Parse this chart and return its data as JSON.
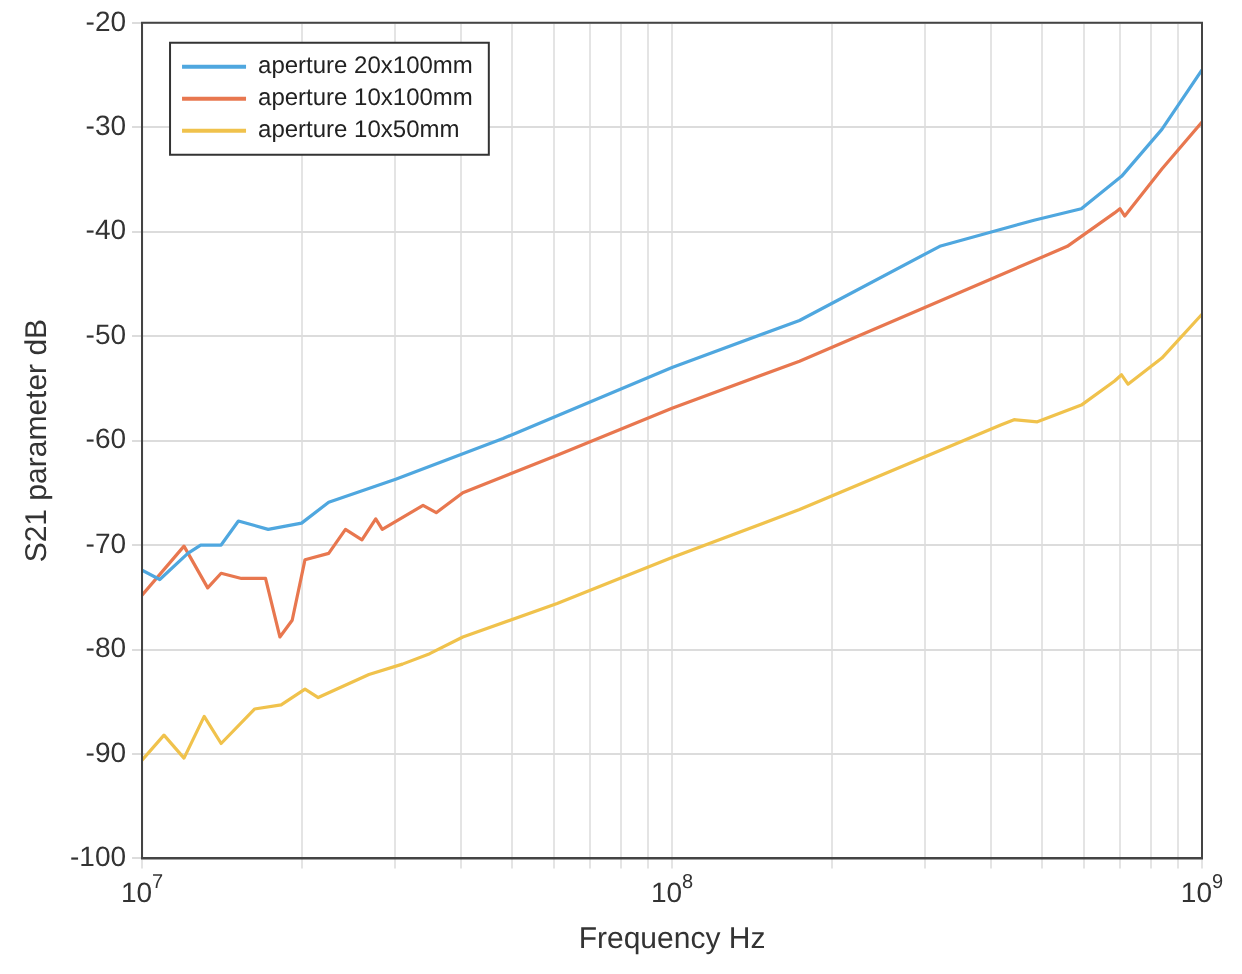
{
  "chart_data": {
    "type": "line",
    "xlabel": "Frequency Hz",
    "ylabel": "S21 parameter dB",
    "log": "x",
    "grid": true,
    "legend": "top left",
    "marker": "none",
    "line_style": "solid",
    "xlim": [
      10000000,
      1000000000
    ],
    "xticks": [
      {
        "value": 10000000,
        "label": "10$^{7}$"
      },
      {
        "value": 20000000,
        "label": null
      },
      {
        "value": 30000000,
        "label": null
      },
      {
        "value": 40000000,
        "label": null
      },
      {
        "value": 50000000,
        "label": null
      },
      {
        "value": 60000000,
        "label": null
      },
      {
        "value": 70000000,
        "label": null
      },
      {
        "value": 80000000,
        "label": null
      },
      {
        "value": 90000000,
        "label": null
      },
      {
        "value": 100000000,
        "label": "10$^{8}$"
      },
      {
        "value": 200000000,
        "label": null
      },
      {
        "value": 300000000,
        "label": null
      },
      {
        "value": 400000000,
        "label": null
      },
      {
        "value": 500000000,
        "label": null
      },
      {
        "value": 600000000,
        "label": null
      },
      {
        "value": 700000000,
        "label": null
      },
      {
        "value": 800000000,
        "label": null
      },
      {
        "value": 900000000,
        "label": null
      },
      {
        "value": 1000000000,
        "label": "10$^{9}$"
      }
    ],
    "ylim": [
      -100,
      -20
    ],
    "yticks": [
      -100,
      -90,
      -80,
      -70,
      -60,
      -50,
      -40,
      -30,
      -20
    ],
    "series": [
      {
        "name": "aperture 20x100mm",
        "color": "#4fa7df",
        "x": [
          10000000,
          10800000,
          12200000,
          12900000,
          14100000,
          15200000,
          17300000,
          20000000,
          22500000,
          30100000,
          48000000,
          100000000,
          174000000,
          320000000,
          482000000,
          592000000,
          705000000,
          840000000,
          1000000000
        ],
        "values": [
          -72.4,
          -73.3,
          -70.8,
          -70,
          -70,
          -67.7,
          -68.5,
          -67.9,
          -65.9,
          -63.7,
          -59.8,
          -53,
          -48.5,
          -41.4,
          -38.9,
          -37.8,
          -34.7,
          -30.2,
          -24.5
        ]
      },
      {
        "name": "aperture 10x100mm",
        "color": "#e8774f",
        "x": [
          10000000,
          12000000,
          13300000,
          14100000,
          15400000,
          17100000,
          18200000,
          19200000,
          20300000,
          22500000,
          24200000,
          26000000,
          27600000,
          28400000,
          33900000,
          35900000,
          40300000,
          60700000,
          100000000,
          174000000,
          557000000,
          684000000,
          700000000,
          715000000,
          840000000,
          1000000000
        ],
        "values": [
          -74.8,
          -70.1,
          -74.1,
          -72.7,
          -73.2,
          -73.2,
          -78.8,
          -77.2,
          -71.4,
          -70.8,
          -68.5,
          -69.5,
          -67.5,
          -68.5,
          -66.2,
          -66.9,
          -65,
          -61.4,
          -56.9,
          -52.4,
          -41.4,
          -38.2,
          -37.8,
          -38.5,
          -34,
          -29.5
        ]
      },
      {
        "name": "aperture 10x50mm",
        "color": "#f0c24c",
        "x": [
          10000000,
          11000000,
          12000000,
          13100000,
          14100000,
          16300000,
          18300000,
          20300000,
          21500000,
          26800000,
          31000000,
          34900000,
          40300000,
          60700000,
          100000000,
          174000000,
          417000000,
          442000000,
          489000000,
          592000000,
          684000000,
          705000000,
          725000000,
          840000000,
          1000000000
        ],
        "values": [
          -90.6,
          -88.2,
          -90.4,
          -86.4,
          -89,
          -85.7,
          -85.3,
          -83.8,
          -84.6,
          -82.4,
          -81.4,
          -80.4,
          -78.8,
          -75.6,
          -71.2,
          -66.6,
          -58.5,
          -58,
          -58.2,
          -56.6,
          -54.3,
          -53.7,
          -54.6,
          -52.1,
          -47.9
        ]
      }
    ]
  }
}
